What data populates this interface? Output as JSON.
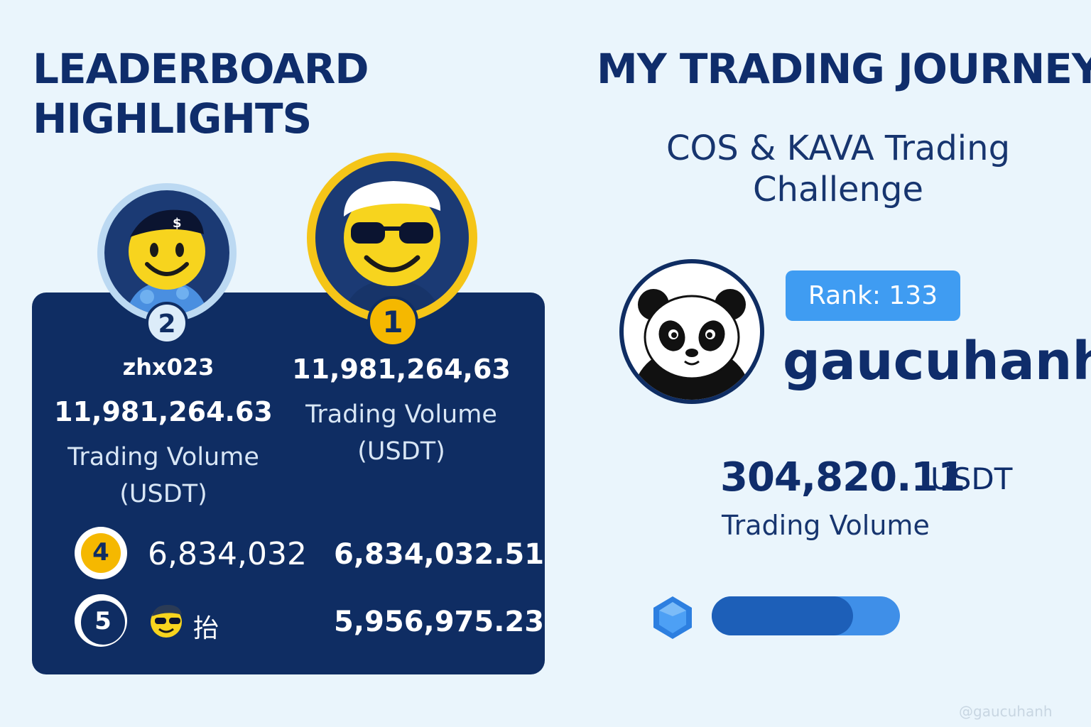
{
  "leaderboard": {
    "title": "LEADERBOARD HIGHLIGHTS",
    "second": {
      "rank": "2",
      "name": "zhx023",
      "volume": "11,981,264.63",
      "volume_label": "Trading Volume (USDT)"
    },
    "first": {
      "rank": "1",
      "volume": "11,981,264,63",
      "volume_label": "Trading Volume (USDT)"
    },
    "rows": [
      {
        "rank": "4",
        "name": "6,834,032",
        "volume": "6,834,032.51"
      },
      {
        "rank": "5",
        "name": "抬",
        "volume": "5,956,975.23"
      }
    ]
  },
  "journey": {
    "title": "MY TRADING JOURNEY",
    "challenge": "COS & KAVA Trading Challenge",
    "rank_label": "Rank: 133",
    "username": "gaucuhanh",
    "volume": "304,820.11",
    "unit": "USDT",
    "volume_label": "Trading Volume",
    "progress": 0.75
  },
  "watermark": "@gaucuhanh",
  "colors": {
    "background": "#eaf5fc",
    "navy": "#0f2d63",
    "gold": "#f5b800",
    "accent_blue": "#3f9cf2"
  }
}
